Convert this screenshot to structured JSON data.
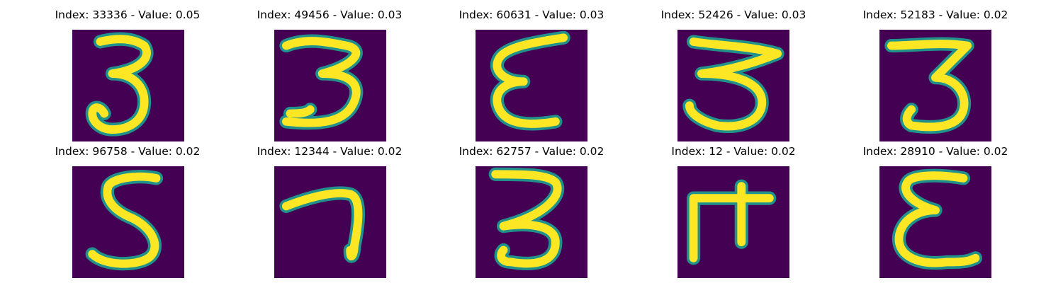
{
  "colors": {
    "background": "#440154",
    "stroke_outer": "#21918c",
    "stroke_inner": "#fde725"
  },
  "samples": [
    {
      "title": "Index: 33336 - Value: 0.05",
      "digit_shape": "three"
    },
    {
      "title": "Index: 49456 - Value: 0.03",
      "digit_shape": "three"
    },
    {
      "title": "Index: 60631 - Value: 0.03",
      "digit_shape": "epsilon"
    },
    {
      "title": "Index: 52426 - Value: 0.03",
      "digit_shape": "three"
    },
    {
      "title": "Index: 52183 - Value: 0.02",
      "digit_shape": "three"
    },
    {
      "title": "Index: 96758 - Value: 0.02",
      "digit_shape": "five"
    },
    {
      "title": "Index: 12344 - Value: 0.02",
      "digit_shape": "seven"
    },
    {
      "title": "Index: 62757 - Value: 0.02",
      "digit_shape": "three"
    },
    {
      "title": "Index: 12 - Value: 0.02",
      "digit_shape": "four-like"
    },
    {
      "title": "Index: 28910 - Value: 0.02",
      "digit_shape": "epsilon"
    }
  ]
}
